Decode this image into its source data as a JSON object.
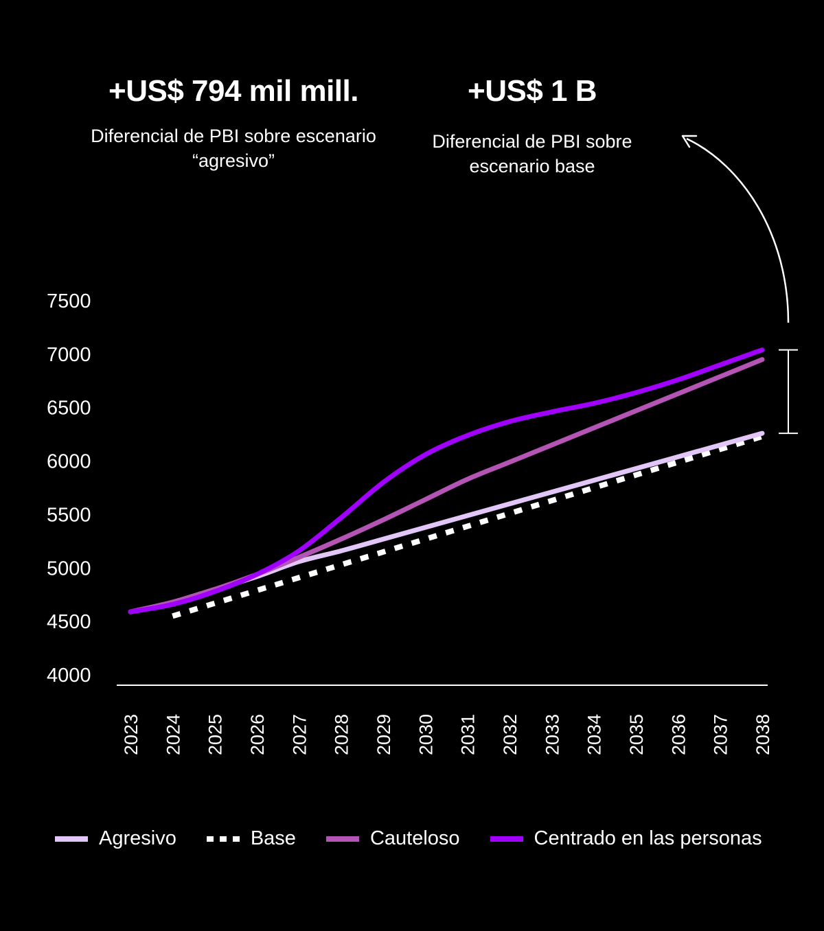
{
  "callouts": {
    "left": {
      "value": "+US$ 794 mil mill.",
      "text": "Diferencial de PBI sobre escenario “agresivo”"
    },
    "right": {
      "value": "+US$ 1 B",
      "text": "Diferencial de PBI sobre escenario base"
    }
  },
  "chart_data": {
    "type": "line",
    "x": [
      "2023",
      "2024",
      "2025",
      "2026",
      "2027",
      "2028",
      "2029",
      "2030",
      "2031",
      "2032",
      "2033",
      "2034",
      "2035",
      "2036",
      "2037",
      "2038"
    ],
    "ylim": [
      4000,
      7500
    ],
    "yticks": [
      4000,
      4500,
      5000,
      5500,
      6000,
      6500,
      7000,
      7500
    ],
    "grid": false,
    "legend_position": "bottom",
    "series": [
      {
        "name": "Agresivo",
        "color": "#e2c6f7",
        "style": "solid",
        "values": [
          4590,
          4680,
          4800,
          4920,
          5060,
          5160,
          5270,
          5380,
          5490,
          5600,
          5710,
          5820,
          5930,
          6040,
          6150,
          6260
        ]
      },
      {
        "name": "Base",
        "color": "#ffffff",
        "style": "dashed",
        "values": [
          null,
          4550,
          4670,
          4790,
          4910,
          5030,
          5150,
          5270,
          5390,
          5510,
          5630,
          5750,
          5870,
          5990,
          6110,
          6230
        ]
      },
      {
        "name": "Cauteloso",
        "color": "#b455b5",
        "style": "solid",
        "values": [
          4590,
          4680,
          4800,
          4940,
          5100,
          5270,
          5450,
          5640,
          5830,
          5990,
          6150,
          6310,
          6470,
          6630,
          6790,
          6950
        ]
      },
      {
        "name": "Centrado en las personas",
        "color": "#a100ff",
        "style": "solid",
        "values": [
          4590,
          4660,
          4780,
          4940,
          5160,
          5470,
          5800,
          6060,
          6240,
          6370,
          6460,
          6540,
          6640,
          6760,
          6900,
          7040
        ]
      }
    ]
  }
}
